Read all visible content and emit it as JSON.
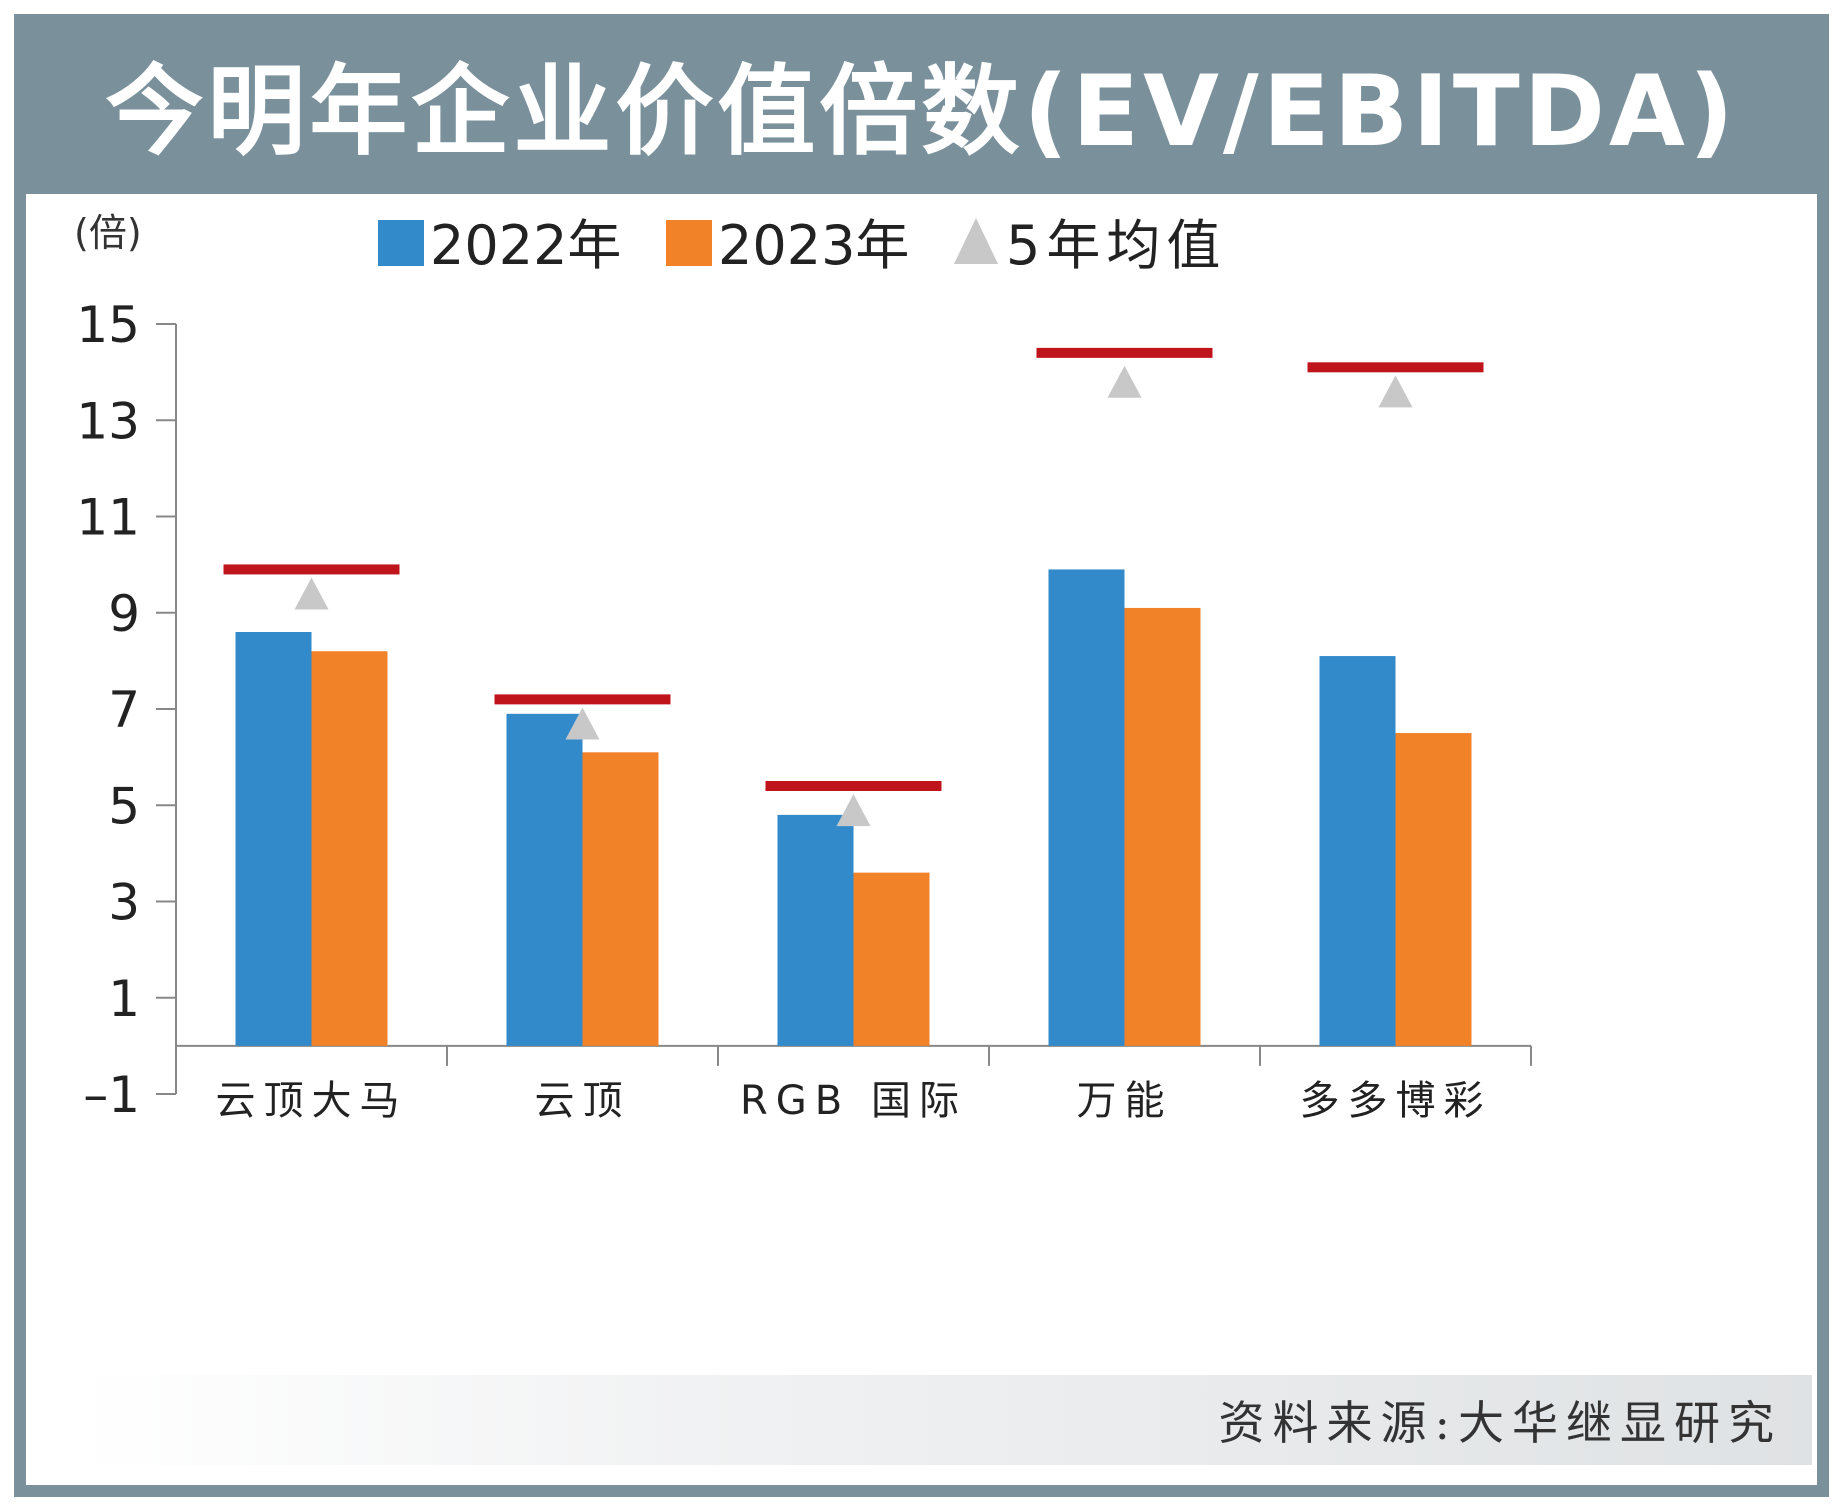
{
  "title": "今明年企业价值倍数(EV/EBITDA)",
  "source": "资料来源:大华继显研究",
  "colors": {
    "frame": "#7a919c",
    "series_2022": "#338acb",
    "series_2023": "#f28228",
    "avg_marker": "#c8c8c8",
    "reference_line": "#c0141c"
  },
  "chart_data": {
    "type": "bar",
    "unit_label": "(倍)",
    "categories": [
      "云顶大马",
      "云顶",
      "RGB 国际",
      "万能",
      "多多博彩"
    ],
    "series": [
      {
        "name": "2022年",
        "values": [
          8.6,
          6.9,
          4.8,
          9.9,
          8.1
        ]
      },
      {
        "name": "2023年",
        "values": [
          8.2,
          6.1,
          3.6,
          9.1,
          6.5
        ]
      }
    ],
    "five_year_avg": {
      "name": "5年均值",
      "values": [
        9.4,
        6.7,
        4.9,
        13.8,
        13.6
      ]
    },
    "reference_lines": [
      9.9,
      7.2,
      5.4,
      14.4,
      14.1
    ],
    "yticks": [
      15,
      13,
      11,
      9,
      7,
      5,
      3,
      1,
      -1
    ],
    "ytick_labels": [
      "15",
      "13",
      "11",
      "9",
      "7",
      "5",
      "3",
      "1",
      "–1"
    ],
    "ylim": [
      -1,
      15
    ],
    "baseline": 0,
    "legend_position": "top-center"
  }
}
